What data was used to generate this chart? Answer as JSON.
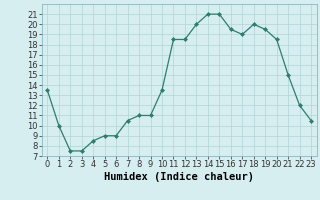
{
  "x": [
    0,
    1,
    2,
    3,
    4,
    5,
    6,
    7,
    8,
    9,
    10,
    11,
    12,
    13,
    14,
    15,
    16,
    17,
    18,
    19,
    20,
    21,
    22,
    23
  ],
  "y": [
    13.5,
    10,
    7.5,
    7.5,
    8.5,
    9,
    9,
    10.5,
    11,
    11,
    13.5,
    18.5,
    18.5,
    20,
    21,
    21,
    19.5,
    19,
    20,
    19.5,
    18.5,
    15,
    12,
    10.5
  ],
  "line_color": "#2e7d6e",
  "marker_color": "#2e7d6e",
  "bg_color": "#d6eef0",
  "grid_color": "#b0d4d8",
  "xlabel": "Humidex (Indice chaleur)",
  "ylim": [
    7,
    22
  ],
  "xlim": [
    -0.5,
    23.5
  ],
  "yticks": [
    7,
    8,
    9,
    10,
    11,
    12,
    13,
    14,
    15,
    16,
    17,
    18,
    19,
    20,
    21
  ],
  "xticks": [
    0,
    1,
    2,
    3,
    4,
    5,
    6,
    7,
    8,
    9,
    10,
    11,
    12,
    13,
    14,
    15,
    16,
    17,
    18,
    19,
    20,
    21,
    22,
    23
  ],
  "tick_fontsize": 6,
  "label_fontsize": 7.5
}
